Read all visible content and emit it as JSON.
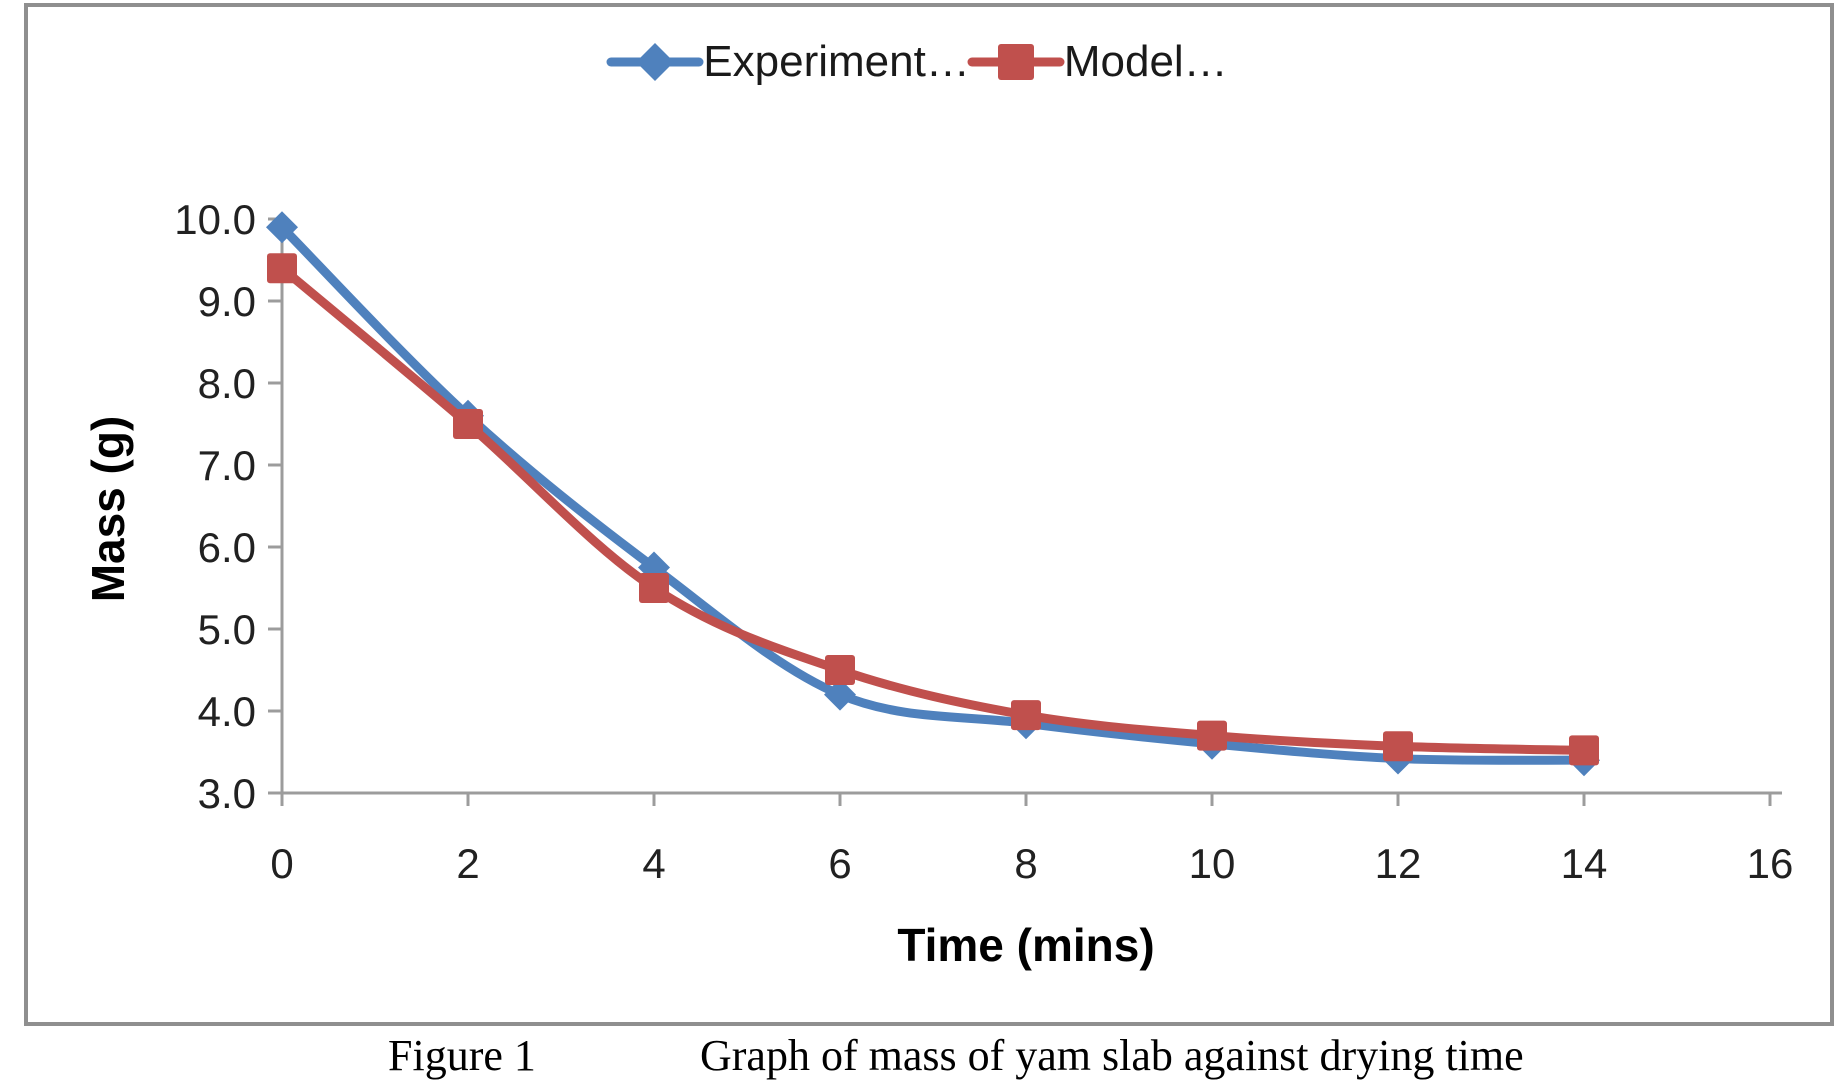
{
  "chart_data": {
    "type": "line",
    "title": "",
    "x": [
      0,
      2,
      4,
      6,
      8,
      10,
      12,
      14
    ],
    "series": [
      {
        "name": "Experiment…",
        "id": "experiment",
        "values": [
          9.9,
          7.6,
          5.75,
          4.2,
          3.85,
          3.6,
          3.42,
          3.4
        ],
        "color": "#4F81BD",
        "marker": "diamond"
      },
      {
        "name": "Model…",
        "id": "model",
        "values": [
          9.4,
          7.5,
          5.5,
          4.5,
          3.95,
          3.7,
          3.57,
          3.52
        ],
        "color": "#C0504D",
        "marker": "square"
      }
    ],
    "xlabel": "Time (mins)",
    "ylabel": "Mass (g)",
    "xlim": [
      0,
      16
    ],
    "ylim": [
      3,
      10
    ],
    "x_ticks": [
      "0",
      "2",
      "4",
      "6",
      "8",
      "10",
      "12",
      "14",
      "16"
    ],
    "x_tick_step": 2,
    "y_ticks": [
      "3.0",
      "4.0",
      "5.0",
      "6.0",
      "7.0",
      "8.0",
      "9.0",
      "10.0"
    ],
    "y_tick_step": 1,
    "grid": false,
    "smooth": true,
    "legend_position": "top-center"
  },
  "caption": {
    "figure_label": "Figure 1",
    "text": "Graph of mass of yam slab against drying time"
  },
  "colors": {
    "axis": "#9c9c9c",
    "frame_border": "#8f8f8f",
    "tick_text": "#212121",
    "series_experiment": "#4F81BD",
    "series_model": "#C0504D"
  }
}
